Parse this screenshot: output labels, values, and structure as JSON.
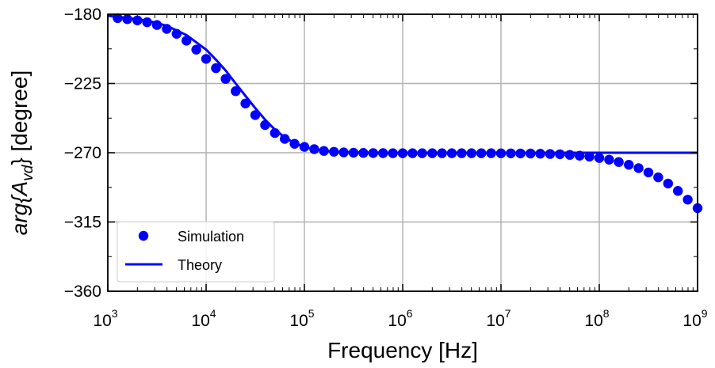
{
  "chart_data": {
    "type": "line",
    "xlabel": "Frequency [Hz]",
    "ylabel": {
      "prefix": "arg{A",
      "subscript": "vd",
      "suffix": "} [degree]"
    },
    "x_scale": "log",
    "xlim": [
      1000,
      1000000000
    ],
    "ylim": [
      -360,
      -180
    ],
    "x_ticks": [
      {
        "value": 1000,
        "base": "10",
        "exp": "3"
      },
      {
        "value": 10000,
        "base": "10",
        "exp": "4"
      },
      {
        "value": 100000,
        "base": "10",
        "exp": "5"
      },
      {
        "value": 1000000,
        "base": "10",
        "exp": "6"
      },
      {
        "value": 10000000,
        "base": "10",
        "exp": "7"
      },
      {
        "value": 100000000,
        "base": "10",
        "exp": "8"
      },
      {
        "value": 1000000000,
        "base": "10",
        "exp": "9"
      }
    ],
    "y_ticks": [
      {
        "value": -180,
        "label": "−180"
      },
      {
        "value": -225,
        "label": "−225"
      },
      {
        "value": -270,
        "label": "−270"
      },
      {
        "value": -315,
        "label": "−315"
      },
      {
        "value": -360,
        "label": "−360"
      }
    ],
    "grid": true,
    "legend_position": "bottom-left",
    "series": [
      {
        "name": "Simulation",
        "style": "markers",
        "color": "#0000ff",
        "x": [
          1260,
          1580,
          2000,
          2510,
          3160,
          3980,
          5010,
          6310,
          7940,
          10000,
          12600,
          15800,
          20000,
          25100,
          31600,
          39800,
          50100,
          63100,
          79400,
          100000,
          126000,
          158000,
          200000,
          251000,
          316000,
          398000,
          501000,
          631000,
          794000,
          1000000,
          1260000,
          1580000,
          2000000,
          2510000,
          3160000,
          3980000,
          5010000,
          6310000,
          7940000,
          10000000,
          12600000,
          15800000,
          20000000,
          25100000,
          31600000,
          39800000,
          50100000,
          63100000,
          79400000,
          100000000,
          126000000,
          158000000,
          200000000,
          251000000,
          316000000,
          398000000,
          501000000,
          631000000,
          794000000,
          1000000000
        ],
        "y": [
          -182.5,
          -183.2,
          -184.0,
          -185.2,
          -187.0,
          -189.5,
          -192.7,
          -197.2,
          -203.0,
          -209.0,
          -215.0,
          -222.0,
          -230.0,
          -238.0,
          -245.5,
          -252.0,
          -257.2,
          -261.0,
          -264.2,
          -266.2,
          -267.7,
          -268.8,
          -269.4,
          -269.8,
          -270.0,
          -270.1,
          -270.2,
          -270.25,
          -270.3,
          -270.3,
          -270.3,
          -270.3,
          -270.3,
          -270.3,
          -270.3,
          -270.3,
          -270.3,
          -270.3,
          -270.3,
          -270.35,
          -270.4,
          -270.45,
          -270.5,
          -270.6,
          -270.8,
          -271.0,
          -271.4,
          -271.9,
          -272.5,
          -273.4,
          -274.5,
          -276.0,
          -277.8,
          -280.0,
          -282.8,
          -286.0,
          -290.0,
          -294.8,
          -300.5,
          -306.0
        ]
      },
      {
        "name": "Theory",
        "style": "line",
        "color": "#0000ff",
        "x": [
          1000,
          1580,
          2510,
          3980,
          6310,
          10000,
          12600,
          15800,
          20000,
          25100,
          31600,
          39800,
          50100,
          63100,
          79400,
          100000,
          126000,
          158000,
          200000,
          251000,
          316000,
          398000,
          501000,
          631000,
          1000000,
          10000000,
          100000000,
          1000000000
        ],
        "y": [
          -181.0,
          -182.4,
          -184.1,
          -187.5,
          -193.5,
          -203.0,
          -209.5,
          -216.5,
          -225.0,
          -233.0,
          -241.0,
          -248.5,
          -255.0,
          -260.0,
          -263.8,
          -266.3,
          -267.8,
          -268.7,
          -269.3,
          -269.6,
          -269.8,
          -269.9,
          -269.95,
          -270.0,
          -270.0,
          -270.0,
          -270.0,
          -270.0
        ]
      }
    ]
  }
}
